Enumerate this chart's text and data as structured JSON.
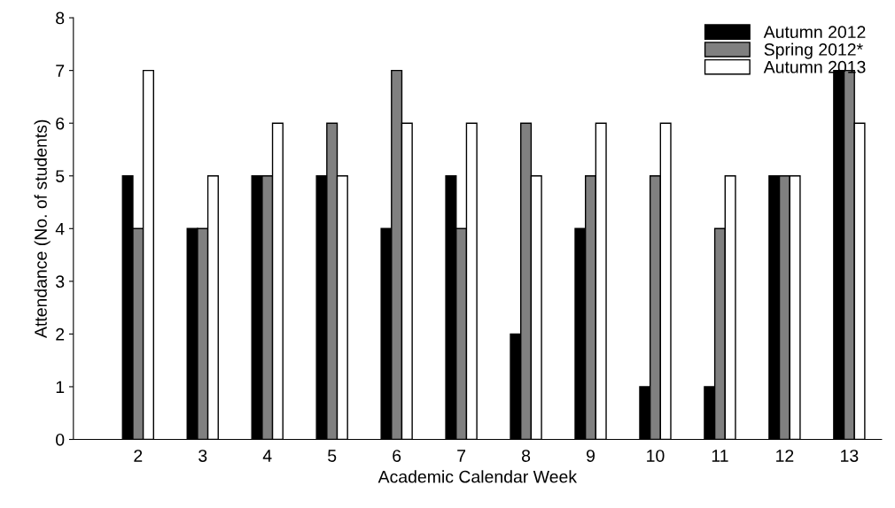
{
  "chart_data": {
    "type": "bar",
    "xlabel": "Academic Calendar Week",
    "ylabel": "Attendance (No. of students)",
    "categories": [
      "2",
      "3",
      "4",
      "5",
      "6",
      "7",
      "8",
      "9",
      "10",
      "11",
      "12",
      "13"
    ],
    "series": [
      {
        "name": "Autumn 2012",
        "color": "#000000",
        "values": [
          5,
          4,
          5,
          5,
          4,
          5,
          2,
          4,
          1,
          1,
          5,
          7
        ]
      },
      {
        "name": "Spring 2012*",
        "color": "#808080",
        "values": [
          4,
          4,
          5,
          6,
          7,
          4,
          6,
          5,
          5,
          4,
          5,
          7
        ]
      },
      {
        "name": "Autumn 2013",
        "color": "#ffffff",
        "values": [
          7,
          5,
          6,
          5,
          6,
          6,
          5,
          6,
          6,
          5,
          5,
          6
        ]
      }
    ],
    "ylim": [
      0,
      8
    ],
    "yticks": [
      0,
      1,
      2,
      3,
      4,
      5,
      6,
      7,
      8
    ],
    "grid": false,
    "legend": "top right"
  }
}
